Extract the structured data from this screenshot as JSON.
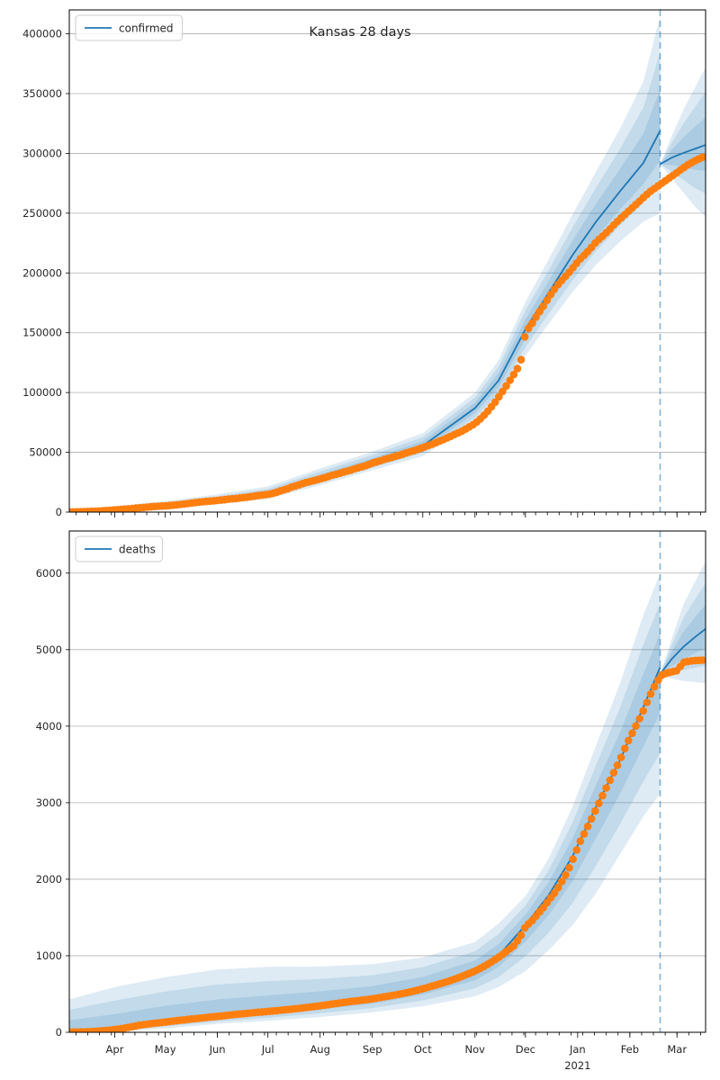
{
  "figure": {
    "title": "Kansas 28 days",
    "year_label": "2021"
  },
  "colors": {
    "model_line": "#1f77b4",
    "actual_points": "#ff7f0e",
    "band_fill": "rgba(31,119,180,0.15)",
    "forecast_divider": "rgba(31,119,180,0.55)",
    "gridline": "#b0b0b0",
    "spine": "#000000",
    "legend_border": "#cccccc"
  },
  "axis": {
    "day_range": [
      0,
      378
    ],
    "forecast_day": 351,
    "minor_tick_start": 4,
    "minor_tick_step": 7,
    "months": [
      {
        "label": "Apr",
        "day": 27
      },
      {
        "label": "May",
        "day": 57
      },
      {
        "label": "Jun",
        "day": 88
      },
      {
        "label": "Jul",
        "day": 118
      },
      {
        "label": "Aug",
        "day": 149
      },
      {
        "label": "Sep",
        "day": 180
      },
      {
        "label": "Oct",
        "day": 210
      },
      {
        "label": "Nov",
        "day": 241
      },
      {
        "label": "Dec",
        "day": 271
      },
      {
        "label": "Jan",
        "day": 302
      },
      {
        "label": "Feb",
        "day": 333
      },
      {
        "label": "Mar",
        "day": 361
      }
    ],
    "year_under_day": 302
  },
  "chart_data": [
    {
      "type": "line",
      "title": "Kansas 28 days",
      "legend": "confirmed",
      "ylim": [
        0,
        420000
      ],
      "yticks": [
        0,
        50000,
        100000,
        150000,
        200000,
        250000,
        300000,
        350000,
        400000
      ],
      "band_fracs": [
        1.0,
        0.68,
        0.36
      ],
      "actual": {
        "days": [
          0,
          4,
          7,
          11,
          14,
          18,
          21,
          24,
          27,
          31,
          34,
          38,
          41,
          45,
          48,
          52,
          57,
          61,
          64,
          68,
          71,
          75,
          78,
          82,
          85,
          88,
          92,
          95,
          99,
          102,
          106,
          109,
          113,
          118,
          122,
          125,
          129,
          132,
          136,
          139,
          143,
          146,
          149,
          153,
          156,
          160,
          163,
          167,
          170,
          174,
          177,
          180,
          184,
          187,
          191,
          194,
          198,
          201,
          205,
          208,
          212,
          215,
          219,
          222,
          226,
          229,
          233,
          236,
          241,
          245,
          249,
          253,
          257,
          261,
          264,
          268,
          271,
          275,
          278,
          282,
          285,
          289,
          292,
          296,
          299,
          303,
          306,
          310,
          313,
          317,
          320,
          324,
          327,
          331,
          334,
          338,
          341,
          345,
          348,
          351,
          354,
          358,
          361,
          365,
          368,
          372,
          375,
          378
        ],
        "values": [
          150,
          200,
          350,
          500,
          700,
          950,
          1200,
          1500,
          1800,
          2200,
          2600,
          3050,
          3500,
          4000,
          4400,
          4800,
          5200,
          5700,
          6100,
          6700,
          7300,
          8000,
          8500,
          9000,
          9400,
          9800,
          10300,
          10900,
          11400,
          12000,
          12500,
          13200,
          14000,
          14800,
          16000,
          17600,
          19200,
          20900,
          22500,
          24100,
          25500,
          26500,
          27800,
          29300,
          30800,
          32200,
          33500,
          35000,
          36400,
          37900,
          39300,
          41000,
          42500,
          44000,
          45500,
          46800,
          48400,
          49900,
          51500,
          53000,
          55000,
          56500,
          58800,
          60500,
          63000,
          65000,
          67500,
          70000,
          74000,
          79000,
          85000,
          92000,
          100000,
          108500,
          115000,
          124000,
          150000,
          158000,
          165000,
          173000,
          180000,
          188000,
          193000,
          199000,
          204000,
          211000,
          215000,
          221000,
          226000,
          231000,
          235000,
          241000,
          245000,
          250000,
          254000,
          259000,
          263000,
          268000,
          271000,
          274000,
          277000,
          281000,
          284000,
          288000,
          291000,
          294000,
          296000,
          298000
        ]
      },
      "model_past": {
        "days": [
          0,
          27,
          57,
          88,
          118,
          149,
          180,
          210,
          241,
          255,
          271,
          285,
          299,
          313,
          327,
          341,
          351
        ],
        "values": [
          300,
          2000,
          5300,
          10000,
          15200,
          28500,
          42000,
          55500,
          87000,
          110000,
          153000,
          184000,
          215000,
          243000,
          268000,
          292000,
          319000
        ],
        "hi": [
          2000,
          5000,
          9200,
          14800,
          21500,
          36500,
          50500,
          66000,
          100000,
          127000,
          176000,
          212000,
          249000,
          285000,
          320000,
          360000,
          415000
        ],
        "lo": [
          0,
          600,
          2800,
          6500,
          11000,
          22500,
          35000,
          46800,
          75500,
          94000,
          131000,
          158000,
          184000,
          207000,
          226000,
          243000,
          250000
        ]
      },
      "model_future": {
        "days": [
          351,
          358,
          365,
          372,
          378
        ],
        "values": [
          291000,
          296500,
          300500,
          304000,
          307000
        ],
        "hi": [
          291000,
          315000,
          337000,
          356000,
          372000
        ],
        "lo": [
          291000,
          279000,
          267000,
          255000,
          247000
        ]
      }
    },
    {
      "type": "line",
      "legend": "deaths",
      "ylim": [
        0,
        6550
      ],
      "yticks": [
        0,
        1000,
        2000,
        3000,
        4000,
        5000,
        6000
      ],
      "band_fracs": [
        1.0,
        0.68,
        0.36
      ],
      "actual": {
        "days": [
          0,
          7,
          14,
          21,
          27,
          34,
          41,
          48,
          57,
          64,
          71,
          78,
          88,
          95,
          102,
          109,
          118,
          125,
          132,
          139,
          146,
          152,
          159,
          166,
          173,
          180,
          187,
          194,
          201,
          208,
          215,
          222,
          229,
          236,
          241,
          245,
          249,
          253,
          257,
          261,
          264,
          268,
          271,
          275,
          278,
          282,
          285,
          289,
          292,
          296,
          299,
          303,
          306,
          310,
          313,
          317,
          320,
          324,
          327,
          331,
          334,
          337,
          340,
          343,
          346,
          349,
          351,
          353,
          356,
          359,
          362,
          364,
          367,
          370,
          374,
          378
        ],
        "values": [
          2,
          5,
          10,
          22,
          35,
          60,
          90,
          112,
          133,
          152,
          170,
          186,
          208,
          225,
          240,
          256,
          272,
          287,
          302,
          320,
          338,
          356,
          378,
          400,
          417,
          437,
          463,
          490,
          520,
          557,
          600,
          645,
          695,
          755,
          800,
          845,
          895,
          950,
          1010,
          1080,
          1130,
          1250,
          1380,
          1460,
          1540,
          1640,
          1730,
          1840,
          1950,
          2100,
          2250,
          2470,
          2600,
          2780,
          2920,
          3100,
          3240,
          3420,
          3550,
          3760,
          3890,
          4020,
          4150,
          4300,
          4450,
          4570,
          4650,
          4680,
          4700,
          4715,
          4730,
          4830,
          4845,
          4855,
          4860,
          4865
        ]
      },
      "model_past": {
        "days": [
          0,
          27,
          57,
          88,
          118,
          149,
          180,
          210,
          241,
          255,
          271,
          285,
          299,
          313,
          327,
          341,
          351
        ],
        "values": [
          5,
          40,
          135,
          210,
          272,
          352,
          440,
          578,
          800,
          1000,
          1400,
          1800,
          2300,
          2950,
          3550,
          4250,
          4770
        ],
        "hi": [
          430,
          590,
          720,
          820,
          855,
          860,
          890,
          980,
          1180,
          1420,
          1780,
          2280,
          2950,
          3750,
          4550,
          5450,
          6000
        ],
        "lo": [
          0,
          5,
          50,
          110,
          150,
          200,
          260,
          340,
          470,
          590,
          800,
          1080,
          1400,
          1820,
          2320,
          2820,
          3120
        ]
      },
      "model_future": {
        "days": [
          351,
          358,
          365,
          372,
          378
        ],
        "values": [
          4680,
          4880,
          5040,
          5170,
          5270
        ],
        "hi": [
          4680,
          5150,
          5600,
          5900,
          6150
        ],
        "lo": [
          4680,
          4620,
          4590,
          4575,
          4560
        ]
      }
    }
  ]
}
